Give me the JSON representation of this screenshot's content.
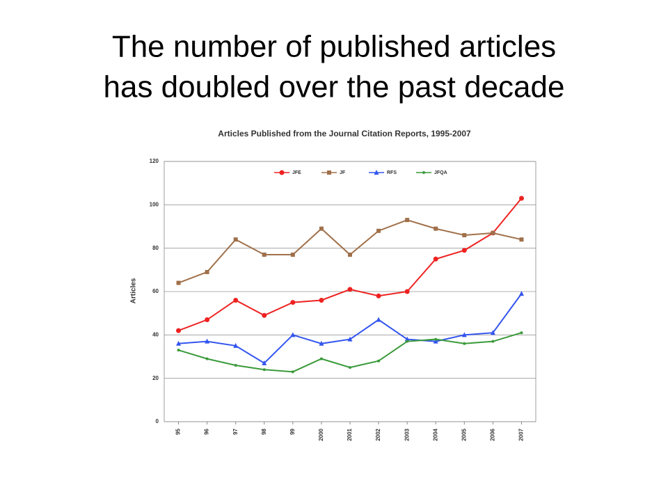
{
  "slide": {
    "title_lines": [
      "The number of published articles",
      "has doubled over the past decade"
    ]
  },
  "chart_data": {
    "type": "line",
    "title": "Articles Published from the Journal Citation Reports, 1995-2007",
    "y_label": "Articles",
    "categories": [
      "95",
      "96",
      "97",
      "98",
      "99",
      "2000",
      "2001",
      "2002",
      "2003",
      "2004",
      "2005",
      "2006",
      "2007"
    ],
    "series": [
      {
        "name": "JFE",
        "color": "#ee2222",
        "marker": "circle",
        "values": [
          42,
          47,
          56,
          49,
          55,
          56,
          61,
          58,
          60,
          75,
          79,
          87,
          103
        ]
      },
      {
        "name": "JF",
        "color": "#a0704a",
        "marker": "square",
        "values": [
          64,
          69,
          84,
          77,
          77,
          89,
          77,
          88,
          93,
          89,
          86,
          87,
          84
        ]
      },
      {
        "name": "RFS",
        "color": "#3355ee",
        "marker": "triangle",
        "values": [
          36,
          37,
          35,
          27,
          40,
          36,
          38,
          47,
          38,
          37,
          40,
          41,
          59
        ]
      },
      {
        "name": "JFQA",
        "color": "#3a9a3a",
        "marker": "dot",
        "values": [
          33,
          29,
          26,
          24,
          23,
          29,
          25,
          28,
          37,
          38,
          36,
          37,
          41
        ]
      }
    ],
    "ylim": [
      0,
      120
    ],
    "yticks": [
      0,
      20,
      40,
      60,
      80,
      100,
      120
    ],
    "grid": true,
    "legend": "top"
  }
}
